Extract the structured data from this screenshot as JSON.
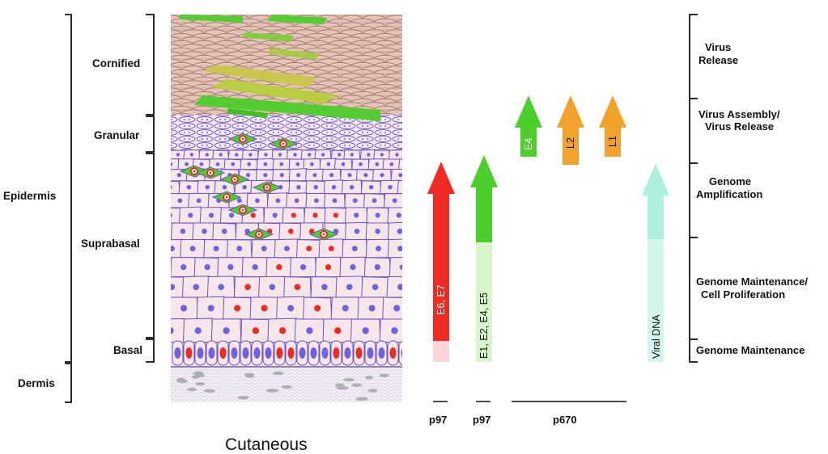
{
  "layers": {
    "epidermis": "Epidermis",
    "dermis": "Dermis",
    "cornified": "Cornified",
    "granular": "Granular",
    "suprabasal": "Suprabasal",
    "basal": "Basal"
  },
  "caption": "Cutaneous",
  "stages": {
    "virus_release_1": "Virus",
    "virus_release_2": "Release",
    "assembly_1": "Virus Assembly/",
    "assembly_2": "Virus Release",
    "amplification_1": "Genome",
    "amplification_2": "Amplification",
    "maintenance_prolif_1": "Genome Maintenance/",
    "maintenance_prolif_2": "Cell Proliferation",
    "maintenance": "Genome Maintenance"
  },
  "arrows": {
    "e6e7": "E6, E7",
    "early": "E1, E2, E4, E5",
    "e4": "E4",
    "l2": "L2",
    "l1": "L1",
    "viral_dna": "Viral DNA"
  },
  "promoters": {
    "p97_a": "p97",
    "p97_b": "p97",
    "p670": "p670"
  },
  "colors": {
    "red": "#ef2a22",
    "red_light": "#f9d6d8",
    "green": "#4ccf2a",
    "green_light": "#d8f5cc",
    "orange": "#f0a22a",
    "teal": "#aef0e0",
    "teal_light": "#d4f5ef",
    "cell_fill": "#f6e6ea",
    "cell_line": "#6a55c8",
    "nucleus": "#6f62e0",
    "corn_fill": "#d9b6ab",
    "corn_line": "#9a6b60"
  }
}
